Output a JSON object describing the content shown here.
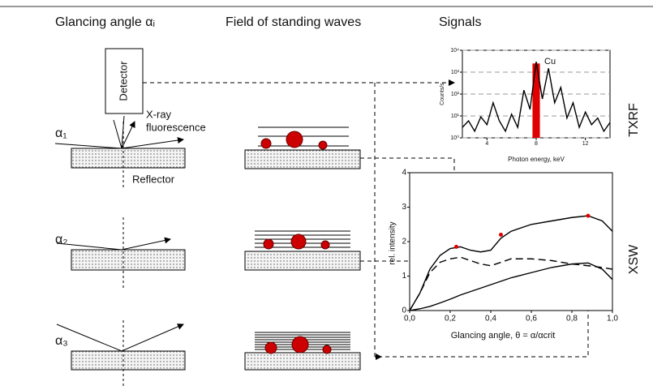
{
  "header": {
    "col1": "Glancing angle αᵢ",
    "col2": "Field of standing waves",
    "col3": "Signals"
  },
  "left": {
    "detector": "Detector",
    "fluorescence": [
      "X-ray",
      "fluorescence"
    ],
    "reflector": "Reflector",
    "angles": [
      "α₁",
      "α₂",
      "α₃"
    ]
  },
  "txrf": {
    "type": "line",
    "label": "TXRF",
    "peak_label": "Cu",
    "xlabel": "Photon energy, keV",
    "ylabel": "Counts/s",
    "xlim": [
      2,
      14
    ],
    "ylim": [
      1,
      10000
    ],
    "log_y": true,
    "grid": true,
    "xticks": [
      4,
      8,
      12
    ],
    "yticks": [
      {
        "value": 1,
        "label": "10⁰"
      },
      {
        "value": 10,
        "label": "10¹"
      },
      {
        "value": 100,
        "label": "10²"
      },
      {
        "value": 1000,
        "label": "10³"
      },
      {
        "value": 10000,
        "label": "10⁴"
      }
    ],
    "x": [
      2,
      2.5,
      3,
      3.5,
      4,
      4.5,
      5,
      5.5,
      6,
      6.5,
      7,
      7.5,
      8,
      8.5,
      9,
      9.5,
      10,
      10.5,
      11,
      11.5,
      12,
      12.5,
      13,
      13.5,
      14
    ],
    "series": [
      {
        "color": "#000000",
        "values": [
          3,
          6,
          2,
          9,
          4,
          40,
          6,
          2,
          12,
          3,
          150,
          20,
          3000,
          60,
          1500,
          40,
          200,
          8,
          40,
          3,
          15,
          4,
          8,
          2,
          5
        ]
      }
    ],
    "peak": {
      "x": [
        7.7,
        8.3
      ],
      "value": 2500,
      "color": "#e00000"
    }
  },
  "xsw": {
    "type": "line",
    "label": "XSW",
    "xlabel": "Glancing angle, θ = α/αcrit",
    "ylabel": "rel. intensity",
    "xlim": [
      0,
      1
    ],
    "ylim": [
      0,
      4
    ],
    "xticks": [
      {
        "value": 0,
        "label": "0,0"
      },
      {
        "value": 0.2,
        "label": "0,2"
      },
      {
        "value": 0.4,
        "label": "0,4"
      },
      {
        "value": 0.6,
        "label": "0,6"
      },
      {
        "value": 0.8,
        "label": "0,8"
      },
      {
        "value": 1,
        "label": "1,0"
      }
    ],
    "yticks": [
      0,
      1,
      2,
      3,
      4
    ],
    "x": [
      0,
      0.05,
      0.1,
      0.15,
      0.2,
      0.25,
      0.3,
      0.35,
      0.4,
      0.45,
      0.5,
      0.6,
      0.7,
      0.8,
      0.88,
      0.95,
      1
    ],
    "series": [
      {
        "color": "#000000",
        "dash": "none",
        "values": [
          0,
          0.5,
          1.2,
          1.6,
          1.8,
          1.85,
          1.75,
          1.7,
          1.75,
          2.1,
          2.3,
          2.5,
          2.6,
          2.7,
          2.75,
          2.6,
          2.3
        ]
      },
      {
        "color": "#000000",
        "dash": "9 5",
        "values": [
          0,
          0.5,
          1.1,
          1.4,
          1.5,
          1.55,
          1.45,
          1.35,
          1.3,
          1.4,
          1.5,
          1.5,
          1.45,
          1.35,
          1.3,
          1.25,
          1.2
        ]
      },
      {
        "color": "#000000",
        "dash": "none",
        "values": [
          0,
          0.05,
          0.12,
          0.22,
          0.33,
          0.45,
          0.55,
          0.65,
          0.75,
          0.85,
          0.95,
          1.1,
          1.25,
          1.35,
          1.38,
          1.2,
          0.9
        ]
      }
    ],
    "points": {
      "x": [
        0.23,
        0.45,
        0.88
      ],
      "values": [
        1.85,
        2.2,
        2.75
      ],
      "color": "#e00000"
    }
  }
}
